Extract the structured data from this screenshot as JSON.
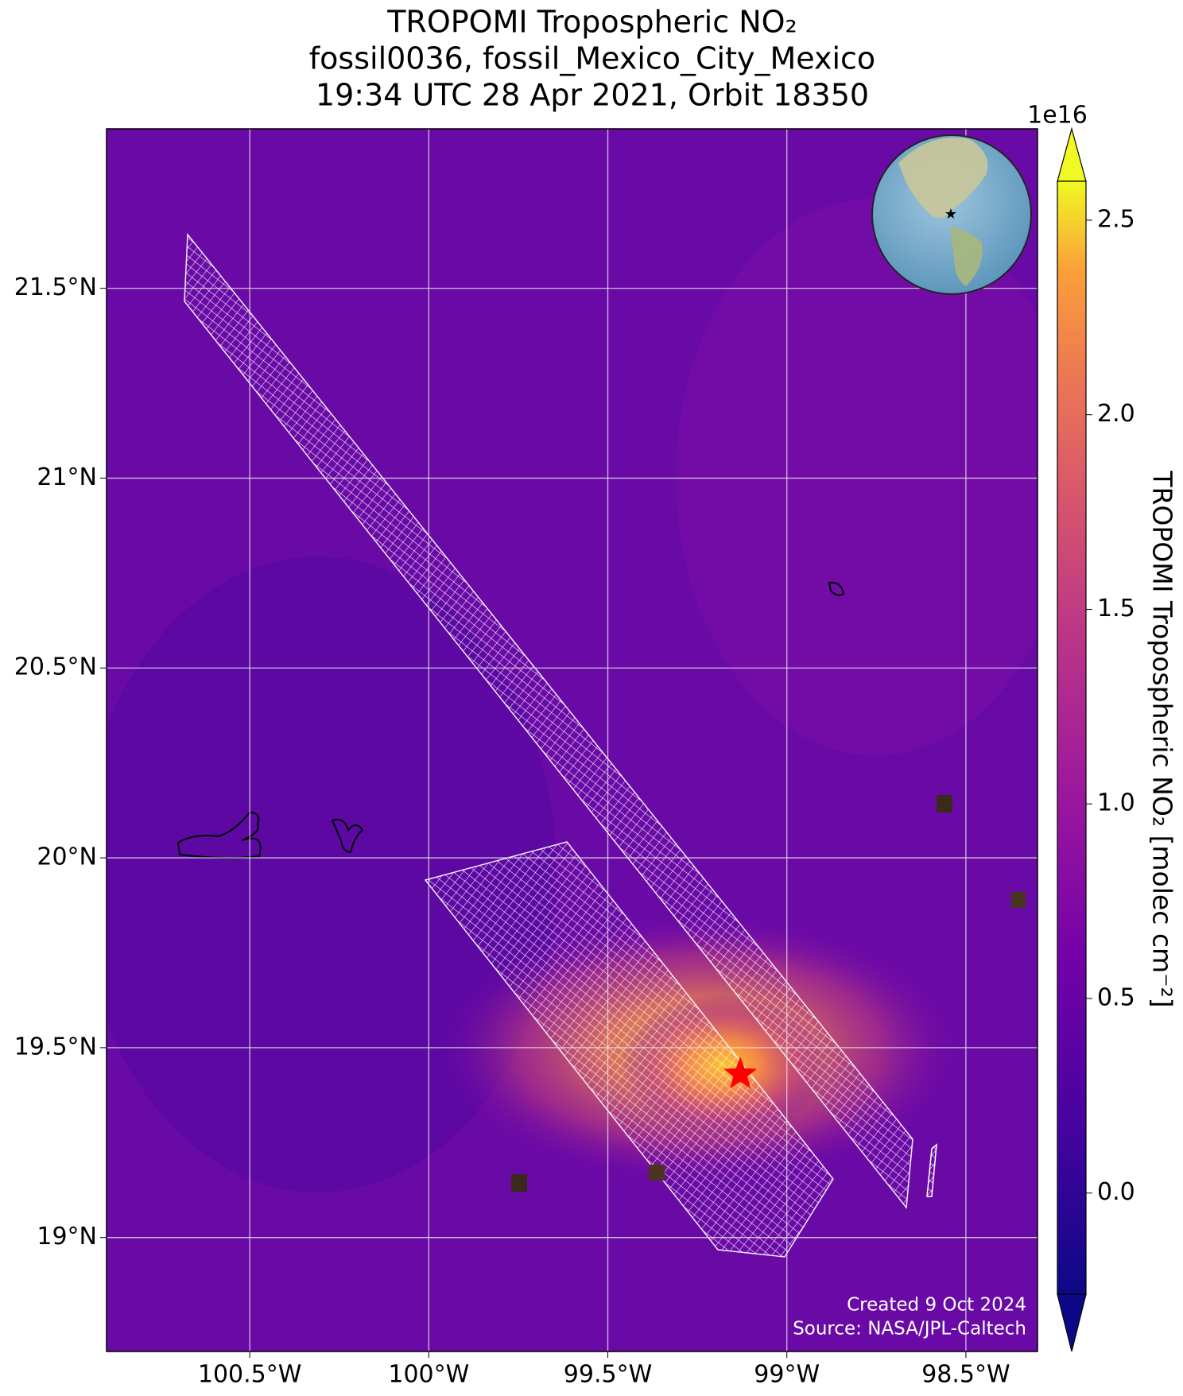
{
  "chart_data": {
    "type": "map",
    "title": [
      "TROPOMI Tropospheric NO₂",
      "fossil0036, fossil_Mexico_City_Mexico",
      "19:34 UTC 28 Apr 2021, Orbit 18350"
    ],
    "xlim": [
      -100.9,
      -98.3
    ],
    "ylim": [
      18.7,
      21.92
    ],
    "xticks": [
      {
        "value": -100.5,
        "label": "100.5°W"
      },
      {
        "value": -100,
        "label": "100°W"
      },
      {
        "value": -99.5,
        "label": "99.5°W"
      },
      {
        "value": -99,
        "label": "99°W"
      },
      {
        "value": -98.5,
        "label": "98.5°W"
      }
    ],
    "yticks": [
      {
        "value": 19,
        "label": "19°N"
      },
      {
        "value": 19.5,
        "label": "19.5°N"
      },
      {
        "value": 20,
        "label": "20°N"
      },
      {
        "value": 20.5,
        "label": "20.5°N"
      },
      {
        "value": 21,
        "label": "21°N"
      },
      {
        "value": 21.5,
        "label": "21.5°N"
      }
    ],
    "grid": true,
    "marker": {
      "x": -99.13,
      "y": 19.43,
      "color": "#ff0000"
    },
    "colorbar": {
      "label": "TROPOMI Tropospheric NO₂ [molec cm⁻²]",
      "multiplier": "1e16",
      "colormap": "plasma",
      "lim": [
        -0.26,
        2.6
      ],
      "ticks": [
        {
          "value": 0,
          "label": "0.0"
        },
        0.5,
        {
          "value": 1,
          "label": "1.0"
        },
        1.5,
        {
          "value": 2,
          "label": "2.0"
        },
        2.5
      ]
    },
    "annotations": [
      "Created 9 Oct 2024",
      "Source: NASA/JPL-Caltech"
    ]
  }
}
